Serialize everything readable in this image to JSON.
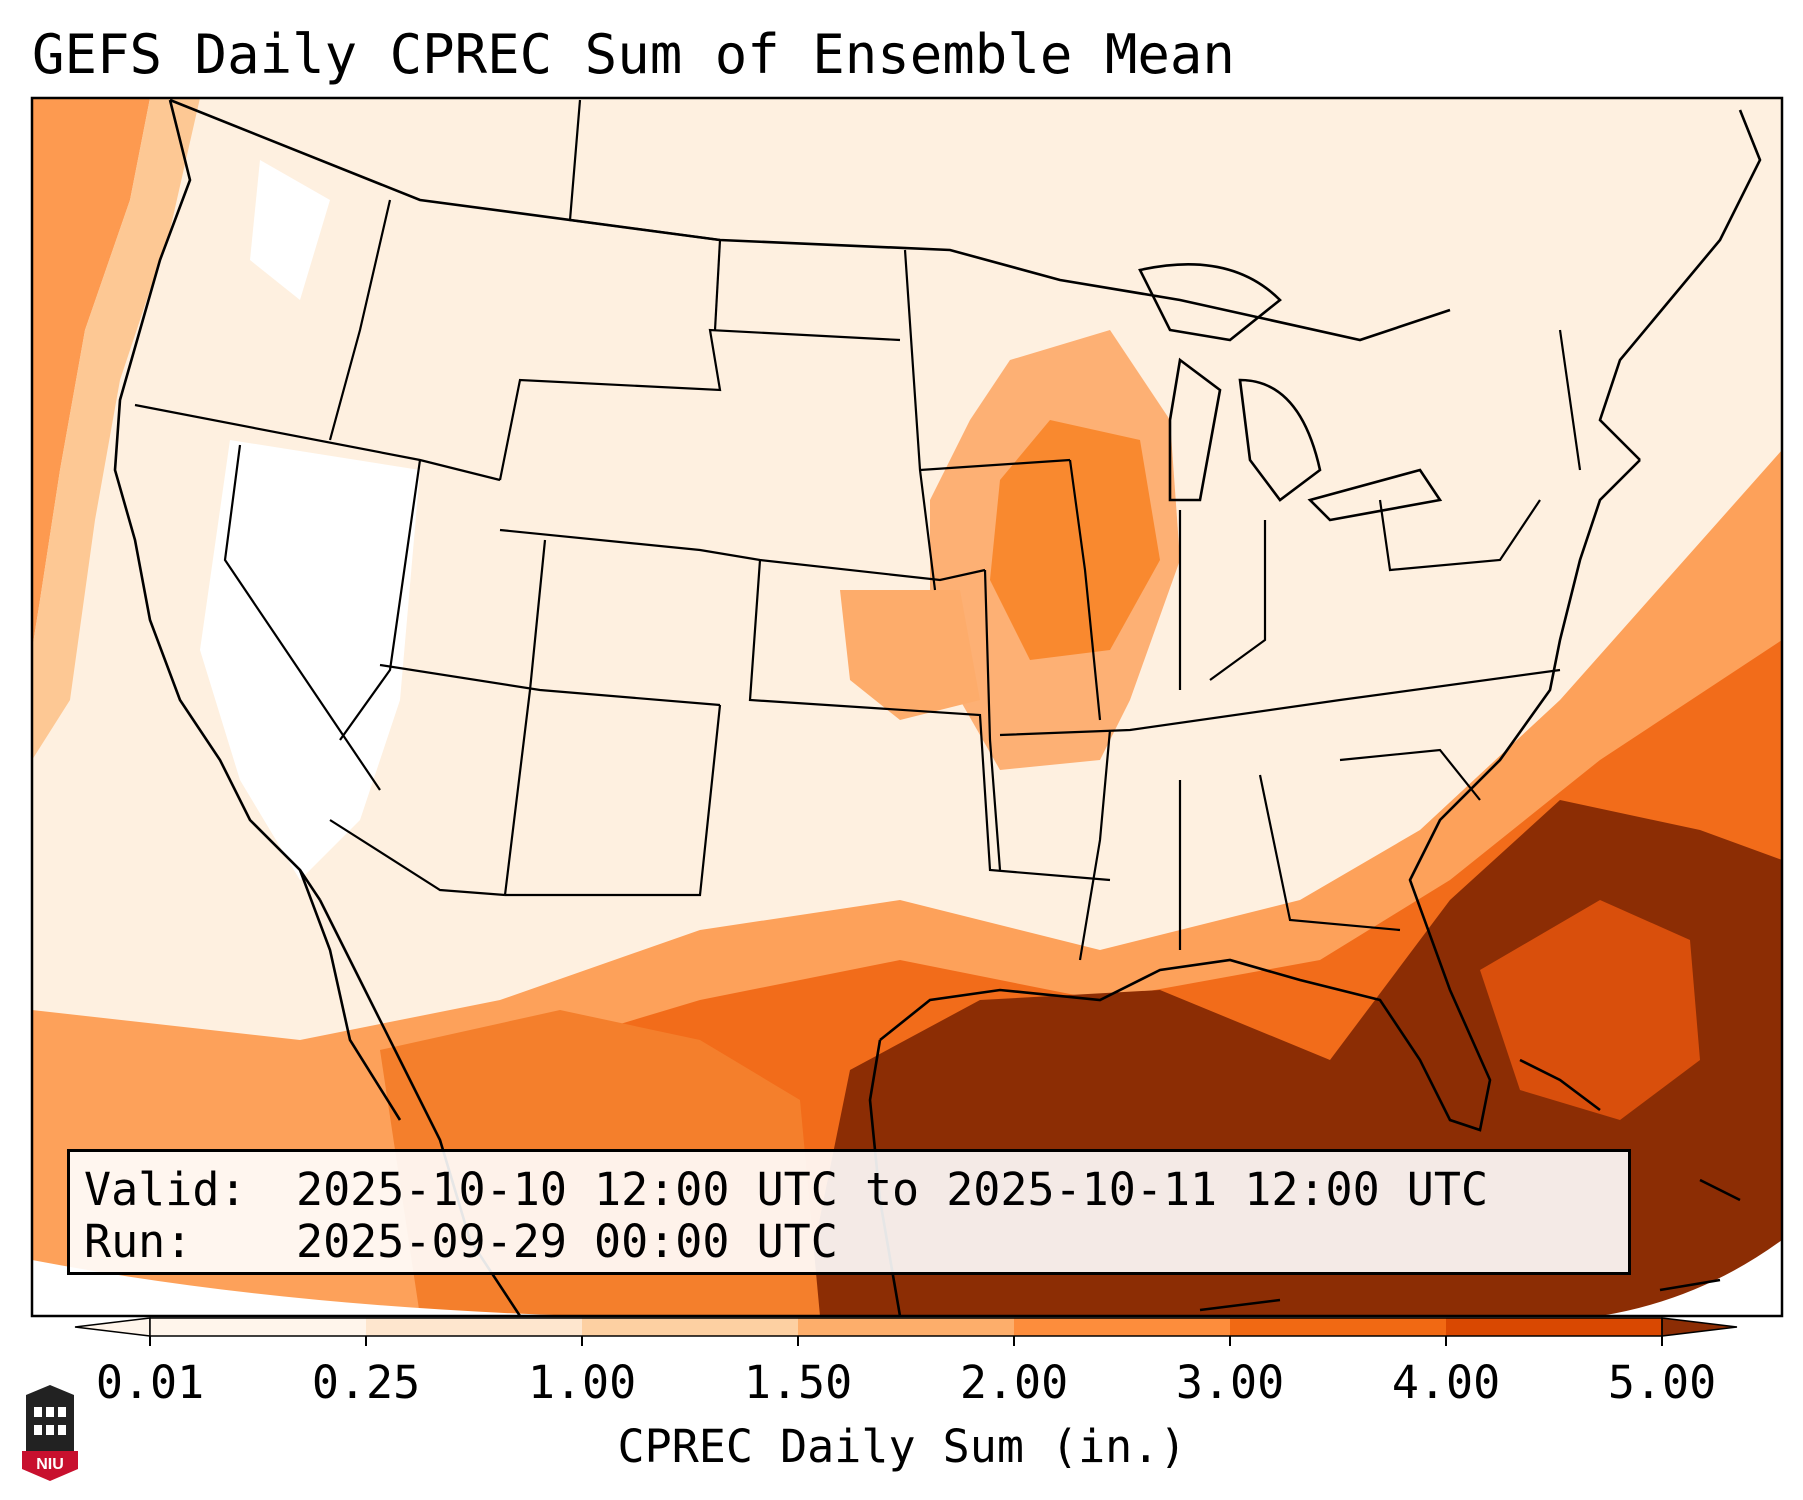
{
  "title": "GEFS Daily CPREC Sum of Ensemble Mean",
  "info": {
    "valid_label": "Valid:",
    "valid_value": "2025-10-10 12:00 UTC to 2025-10-11 12:00 UTC",
    "run_label": "Run:",
    "run_value": "2025-09-29 00:00 UTC"
  },
  "colorbar": {
    "title": "CPREC Daily Sum (in.)",
    "levels": [
      "0.01",
      "0.25",
      "1.00",
      "1.50",
      "2.00",
      "3.00",
      "4.00",
      "5.00"
    ],
    "colors": [
      "#fff5eb",
      "#fee6ce",
      "#fdd0a2",
      "#fdae6b",
      "#fd8d3c",
      "#f16913",
      "#d94801",
      "#8c2d04"
    ],
    "extend": "both"
  },
  "logo": {
    "text": "NIU",
    "color": "#c8102e"
  }
}
